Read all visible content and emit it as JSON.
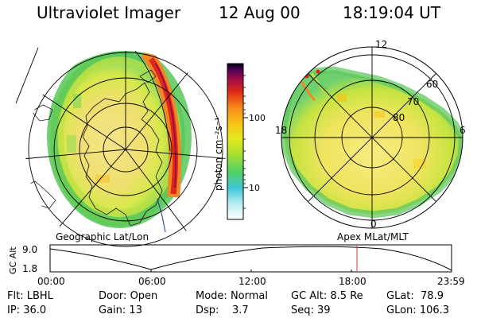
{
  "header": {
    "instrument": "Ultraviolet Imager",
    "date": "12 Aug 00",
    "time": "18:19:04 UT"
  },
  "colorbar": {
    "unit": "photon cm⁻²s⁻¹",
    "ticks": [
      "100",
      "10"
    ]
  },
  "panels": {
    "left_label": "Geographic Lat/Lon",
    "right_label": "Apex  MLat/MLT",
    "mlt_labels": [
      "12",
      "18",
      "6",
      "0"
    ],
    "mlat_labels": [
      "60",
      "70",
      "80"
    ]
  },
  "altitude_plot": {
    "axis_label": "GC Alt",
    "y_ticks": [
      "9.0",
      "1.8"
    ],
    "x_ticks": [
      "00:00",
      "06:00",
      "12:00",
      "18:00",
      "23:59"
    ],
    "marker_time": "18:19"
  },
  "footer": {
    "rows": [
      [
        {
          "key": "Flt:",
          "value": "LBHL"
        },
        {
          "key": "Door:",
          "value": "Open"
        },
        {
          "key": "Mode:",
          "value": "Normal"
        },
        {
          "key": "GC Alt:",
          "value": "8.5 Re"
        },
        {
          "key": "GLat:",
          "value": "78.9"
        }
      ],
      [
        {
          "key": "IP:",
          "value": "36.0"
        },
        {
          "key": "Gain:",
          "value": "13"
        },
        {
          "key": "Dsp:",
          "value": "3.7"
        },
        {
          "key": "Seq:",
          "value": "39"
        },
        {
          "key": "GLon:",
          "value": "106.3"
        }
      ]
    ]
  },
  "colors": {
    "marker": "#e0303a",
    "scale": [
      "#ffffff",
      "#a0e6f0",
      "#40c8d8",
      "#60d060",
      "#a8e030",
      "#e8e820",
      "#f8c018",
      "#f89018",
      "#e83018",
      "#b01040",
      "#600050",
      "#000020"
    ]
  }
}
